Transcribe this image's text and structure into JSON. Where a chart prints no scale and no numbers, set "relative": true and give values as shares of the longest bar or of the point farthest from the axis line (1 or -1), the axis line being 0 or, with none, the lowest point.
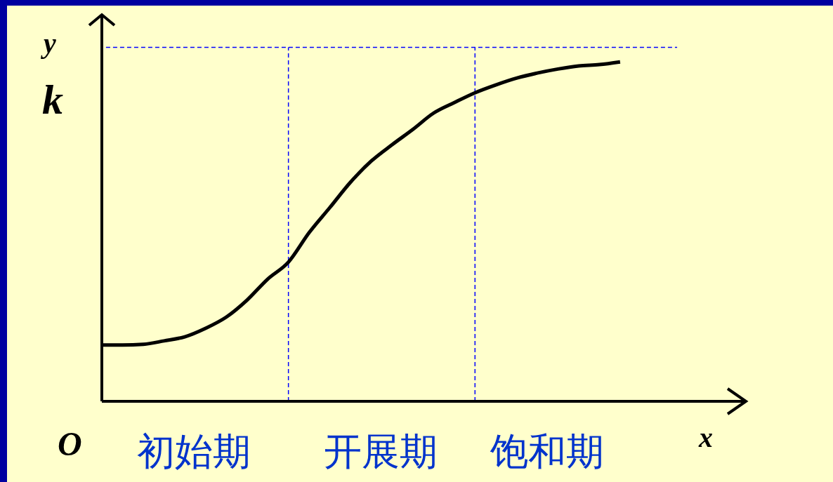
{
  "chart_data": {
    "type": "line",
    "relative": true,
    "xlabel": "x",
    "ylabel": "y",
    "marker": "none",
    "line_style": "solid",
    "categories": [
      null,
      null,
      null,
      null,
      null,
      null,
      null,
      null,
      null,
      null,
      null,
      null,
      null,
      null,
      null,
      null,
      null,
      null,
      null,
      null,
      null,
      null,
      null,
      null,
      null,
      null
    ],
    "series": [
      {
        "color": "#000000",
        "values": [
          0.166,
          0.166,
          0.168,
          0.178,
          0.19,
          0.215,
          0.248,
          0.298,
          0.36,
          0.41,
          0.497,
          0.571,
          0.646,
          0.708,
          0.756,
          0.801,
          0.849,
          0.88,
          0.909,
          0.932,
          0.952,
          0.967,
          0.979,
          0.988,
          0.992,
          1
        ]
      }
    ],
    "ref_lines": [
      {
        "axis": "y",
        "value": 1.043,
        "label": "k",
        "color": "#0000ff",
        "line_style": "dashed"
      }
    ],
    "annotations": [
      "O",
      "初始期",
      "开展期",
      "饱和期"
    ]
  }
}
